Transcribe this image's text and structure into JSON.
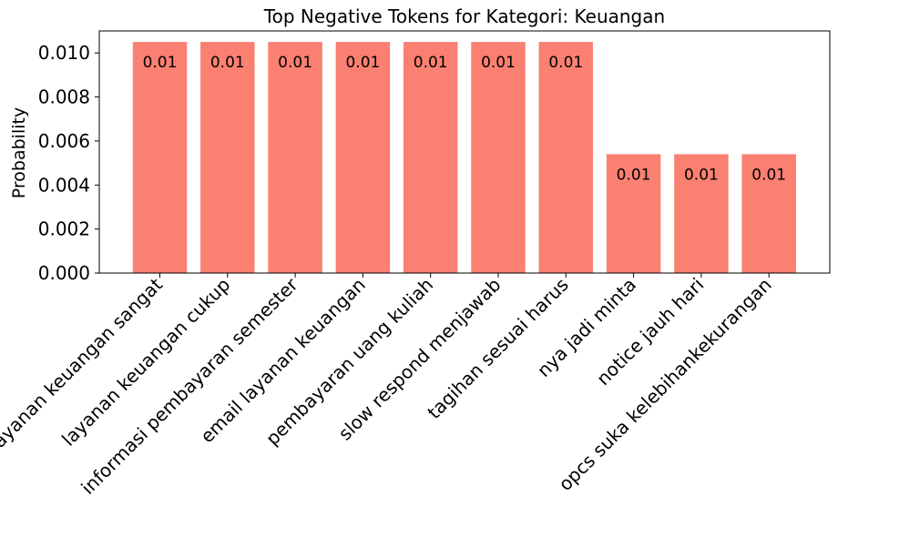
{
  "chart_data": {
    "type": "bar",
    "title": "Top Negative Tokens for Kategori: Keuangan",
    "xlabel": "",
    "ylabel": "Probability",
    "ylim": [
      0,
      0.011
    ],
    "yticks": [
      "0.000",
      "0.002",
      "0.004",
      "0.006",
      "0.008",
      "0.010"
    ],
    "grid": false,
    "bar_color": "#fa8072",
    "categories": [
      "layanan keuangan sangat",
      "layanan keuangan cukup",
      "informasi pembayaran semester",
      "email layanan keuangan",
      "pembayaran uang kuliah",
      "slow respond menjawab",
      "tagihan sesuai harus",
      "nya jadi minta",
      "notice jauh hari",
      "opcs suka kelebihankekurangan"
    ],
    "values": [
      0.0105,
      0.0105,
      0.0105,
      0.0105,
      0.0105,
      0.0105,
      0.0105,
      0.0054,
      0.0054,
      0.0054
    ],
    "data_labels": [
      "0.01",
      "0.01",
      "0.01",
      "0.01",
      "0.01",
      "0.01",
      "0.01",
      "0.01",
      "0.01",
      "0.01"
    ]
  }
}
